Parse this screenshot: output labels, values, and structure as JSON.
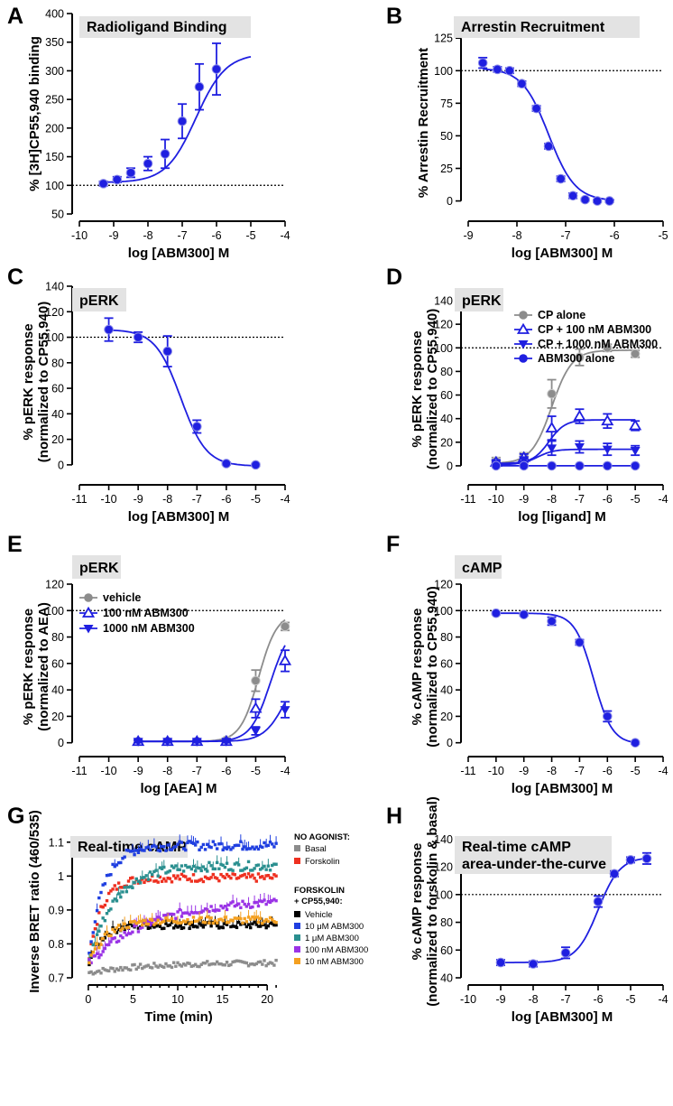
{
  "colors": {
    "blue": "#1f1fe0",
    "gray": "#8c8c8c",
    "title_bg": "#e3e3e3"
  },
  "chart_data": [
    {
      "panel": "A",
      "type": "scatter",
      "title": "Radioligand Binding",
      "xlabel": "log [ABM300] M",
      "ylabel": "% [3H]CP55,940 binding",
      "xlim": [
        -10,
        -4
      ],
      "ylim": [
        50,
        400
      ],
      "xticks": [
        -10,
        -9,
        -8,
        -7,
        -6,
        -5,
        -4
      ],
      "yticks": [
        50,
        100,
        150,
        200,
        250,
        300,
        350,
        400
      ],
      "ref_line": 100,
      "series": [
        {
          "name": "ABM300",
          "color": "blue",
          "marker": "circle",
          "x": [
            -9.3,
            -8.9,
            -8.5,
            -8.0,
            -7.5,
            -7.0,
            -6.5,
            -6.0
          ],
          "y": [
            103,
            110,
            122,
            138,
            155,
            212,
            272,
            303
          ],
          "err": [
            4,
            5,
            8,
            12,
            25,
            30,
            40,
            45
          ],
          "fit": {
            "bottom": 105,
            "top": 330,
            "logec50": -6.6,
            "hill": 1,
            "xrange": [
              -9.3,
              -5.0
            ]
          }
        }
      ]
    },
    {
      "panel": "B",
      "type": "scatter",
      "title": "Arrestin Recruitment",
      "xlabel": "log [ABM300] M",
      "ylabel": "% Arrestin Recruitment",
      "xlim": [
        -9,
        -5
      ],
      "ylim": [
        -10,
        130
      ],
      "xticks": [
        -9,
        -8,
        -7,
        -6,
        -5
      ],
      "yticks": [
        0,
        25,
        50,
        75,
        100,
        125
      ],
      "ref_line": 100,
      "series": [
        {
          "name": "ABM300",
          "color": "blue",
          "marker": "circle",
          "x": [
            -8.7,
            -8.4,
            -8.15,
            -7.9,
            -7.6,
            -7.35,
            -7.1,
            -6.85,
            -6.6,
            -6.35,
            -6.1
          ],
          "y": [
            106,
            101,
            100,
            90,
            71,
            42,
            17,
            4,
            1,
            0,
            0
          ],
          "err": [
            4,
            2,
            2,
            2,
            2,
            2,
            2,
            2,
            1,
            1,
            1
          ],
          "fit": {
            "bottom": 0,
            "top": 102,
            "logec50": -7.35,
            "hill": -1.6,
            "xrange": [
              -8.7,
              -6.0
            ]
          }
        }
      ]
    },
    {
      "panel": "C",
      "type": "scatter",
      "title": "pERK",
      "xlabel": "log [ABM300] M",
      "ylabel": "% pERK response",
      "ylabel2": "(normalized to CP55,940)",
      "xlim": [
        -11,
        -4
      ],
      "ylim": [
        -10,
        140
      ],
      "xticks": [
        -11,
        -10,
        -9,
        -8,
        -7,
        -6,
        -5,
        -4
      ],
      "yticks": [
        0,
        20,
        40,
        60,
        80,
        100,
        120,
        140
      ],
      "ref_line": 100,
      "series": [
        {
          "name": "ABM300",
          "color": "blue",
          "marker": "circle",
          "x": [
            -10,
            -9,
            -8,
            -7,
            -6,
            -5
          ],
          "y": [
            106,
            100,
            89,
            30,
            1,
            0
          ],
          "err": [
            9,
            4,
            12,
            5,
            1,
            1
          ],
          "fit": {
            "bottom": -1,
            "top": 106,
            "logec50": -7.55,
            "hill": -1.0,
            "xrange": [
              -10,
              -5
            ]
          }
        }
      ]
    },
    {
      "panel": "D",
      "type": "scatter",
      "title": "pERK",
      "xlabel": "log [ligand] M",
      "ylabel": "% pERK response",
      "ylabel2": "(normalized to CP55,940)",
      "xlim": [
        -11,
        -4
      ],
      "ylim": [
        -10,
        140
      ],
      "xticks": [
        -11,
        -10,
        -9,
        -8,
        -7,
        -6,
        -5,
        -4
      ],
      "yticks": [
        0,
        20,
        40,
        60,
        80,
        100,
        120,
        140
      ],
      "ref_line": 100,
      "series": [
        {
          "name": "CP alone",
          "color": "gray",
          "marker": "circle",
          "x": [
            -10,
            -9,
            -8,
            -7,
            -6,
            -5
          ],
          "y": [
            4,
            8,
            61,
            92,
            100,
            95
          ],
          "err": [
            3,
            3,
            12,
            7,
            3,
            3
          ],
          "fit": {
            "bottom": 2,
            "top": 98,
            "logec50": -8.0,
            "hill": 1.2,
            "xrange": [
              -10,
              -5
            ]
          }
        },
        {
          "name": "CP + 100 nM ABM300",
          "color": "blue",
          "marker": "triangle-up-open",
          "x": [
            -10,
            -9,
            -8,
            -7,
            -6,
            -5
          ],
          "y": [
            3,
            7,
            32,
            42,
            38,
            34
          ],
          "err": [
            2,
            3,
            10,
            6,
            6,
            4
          ],
          "fit": {
            "bottom": 2,
            "top": 39,
            "logec50": -8.1,
            "hill": 1.5,
            "xrange": [
              -10,
              -5
            ]
          }
        },
        {
          "name": "CP + 1000 nM ABM300",
          "color": "blue",
          "marker": "triangle-down",
          "x": [
            -10,
            -9,
            -8,
            -7,
            -6,
            -5
          ],
          "y": [
            2,
            5,
            15,
            16,
            14,
            13
          ],
          "err": [
            1,
            2,
            6,
            5,
            5,
            4
          ],
          "fit": {
            "bottom": 1,
            "top": 14,
            "logec50": -8.5,
            "hill": 1.5,
            "xrange": [
              -10,
              -5
            ]
          }
        },
        {
          "name": "ABM300 alone",
          "color": "blue",
          "marker": "circle",
          "x": [
            -10,
            -9,
            -8,
            -7,
            -6,
            -5
          ],
          "y": [
            0,
            0,
            0,
            0,
            0,
            0
          ],
          "err": [
            0,
            0,
            0,
            0,
            0,
            0
          ],
          "fit": {
            "bottom": 0,
            "top": 0,
            "logec50": -8,
            "hill": 1,
            "xrange": [
              -10,
              -5
            ]
          }
        }
      ]
    },
    {
      "panel": "E",
      "type": "scatter",
      "title": "pERK",
      "xlabel": "log [AEA] M",
      "ylabel": "% pERK response",
      "ylabel2": "(normalized to AEA)",
      "xlim": [
        -11,
        -4
      ],
      "ylim": [
        -5,
        120
      ],
      "xticks": [
        -11,
        -10,
        -9,
        -8,
        -7,
        -6,
        -5,
        -4
      ],
      "yticks": [
        0,
        20,
        40,
        60,
        80,
        100,
        120
      ],
      "ref_line": 100,
      "series": [
        {
          "name": "vehicle",
          "color": "gray",
          "marker": "circle",
          "x": [
            -9,
            -8,
            -7,
            -6,
            -5,
            -4
          ],
          "y": [
            1,
            1,
            1,
            2,
            47,
            88
          ],
          "err": [
            1,
            1,
            1,
            1,
            8,
            3
          ],
          "fit": {
            "bottom": 1,
            "top": 98,
            "logec50": -4.9,
            "hill": 1.4,
            "xrange": [
              -9,
              -4
            ]
          }
        },
        {
          "name": "100 nM ABM300",
          "color": "blue",
          "marker": "triangle-up-open",
          "x": [
            -9,
            -8,
            -7,
            -6,
            -5,
            -4
          ],
          "y": [
            1,
            1,
            1,
            1,
            26,
            62
          ],
          "err": [
            1,
            1,
            1,
            1,
            7,
            8
          ],
          "fit": {
            "bottom": 1,
            "top": 90,
            "logec50": -4.5,
            "hill": 1.3,
            "xrange": [
              -9,
              -4
            ]
          }
        },
        {
          "name": "1000 nM ABM300",
          "color": "blue",
          "marker": "triangle-down",
          "x": [
            -9,
            -8,
            -7,
            -6,
            -5,
            -4
          ],
          "y": [
            1,
            1,
            1,
            1,
            9,
            25
          ],
          "err": [
            1,
            1,
            1,
            1,
            3,
            6
          ],
          "fit": {
            "bottom": 1,
            "top": 60,
            "logec50": -4.0,
            "hill": 1.2,
            "xrange": [
              -9,
              -4
            ]
          }
        }
      ]
    },
    {
      "panel": "F",
      "type": "scatter",
      "title": "cAMP",
      "xlabel": "log [ABM300] M",
      "ylabel": "% cAMP response",
      "ylabel2": "(normalized to CP55,940)",
      "xlim": [
        -11,
        -4
      ],
      "ylim": [
        -5,
        120
      ],
      "xticks": [
        -11,
        -10,
        -9,
        -8,
        -7,
        -6,
        -5,
        -4
      ],
      "yticks": [
        0,
        20,
        40,
        60,
        80,
        100,
        120
      ],
      "ref_line": 100,
      "series": [
        {
          "name": "ABM300",
          "color": "blue",
          "marker": "circle",
          "x": [
            -10,
            -9,
            -8,
            -7,
            -6,
            -5
          ],
          "y": [
            98,
            97,
            92,
            76,
            20,
            0
          ],
          "err": [
            1,
            1,
            3,
            2,
            4,
            1
          ],
          "fit": {
            "bottom": -1,
            "top": 98,
            "logec50": -6.5,
            "hill": -1.3,
            "xrange": [
              -10,
              -5
            ]
          }
        }
      ]
    },
    {
      "panel": "G",
      "type": "scatter",
      "title": "Real-time cAMP",
      "xlabel": "Time (min)",
      "ylabel": "Inverse BRET ratio (460/535)",
      "xlim": [
        -1,
        22
      ],
      "ylim": [
        0.7,
        1.15
      ],
      "xticks": [
        0,
        5,
        10,
        15,
        20
      ],
      "yticks": [
        0.7,
        0.8,
        0.9,
        1.0,
        1.1
      ],
      "legend": {
        "group1": "NO AGONIST:",
        "group2_line1": "FORSKOLIN",
        "group2_line2": "+ CP55,940:",
        "entries": [
          {
            "label": "Basal",
            "color": "#8c8c8c"
          },
          {
            "label": "Forskolin",
            "color": "#ee3020"
          },
          {
            "label": "Vehicle",
            "color": "#000000"
          },
          {
            "label": "10 μM ABM300",
            "color": "#1f3fe0"
          },
          {
            "label": "1 μM ABM300",
            "color": "#2a8f8f"
          },
          {
            "label": "100 nM ABM300",
            "color": "#9a33e6"
          },
          {
            "label": "10 nM ABM300",
            "color": "#f4a020"
          }
        ]
      },
      "series": [
        {
          "name": "Basal",
          "color": "#8c8c8c",
          "plateau": 0.745,
          "start": 0.715,
          "k": 0.15,
          "noise": 0.008
        },
        {
          "name": "Forskolin",
          "color": "#ee3020",
          "plateau": 0.995,
          "start": 0.74,
          "k": 0.7,
          "noise": 0.012
        },
        {
          "name": "Vehicle",
          "color": "#000000",
          "plateau": 0.855,
          "start": 0.74,
          "k": 0.7,
          "noise": 0.01
        },
        {
          "name": "10 μM ABM300",
          "color": "#1f3fe0",
          "plateau": 1.09,
          "start": 0.75,
          "k": 0.6,
          "noise": 0.013
        },
        {
          "name": "1 μM ABM300",
          "color": "#2a8f8f",
          "plateau": 1.03,
          "start": 0.74,
          "k": 0.35,
          "noise": 0.013
        },
        {
          "name": "100 nM ABM300",
          "color": "#9a33e6",
          "plateau": 0.93,
          "start": 0.74,
          "k": 0.15,
          "noise": 0.012
        },
        {
          "name": "10 nM ABM300",
          "color": "#f4a020",
          "plateau": 0.87,
          "start": 0.74,
          "k": 0.5,
          "noise": 0.01
        }
      ]
    },
    {
      "panel": "H",
      "type": "scatter",
      "title": "Real-time cAMP",
      "title2": "area-under-the-curve",
      "xlabel": "log [ABM300] M",
      "ylabel": "% cAMP response",
      "ylabel2": "(normalized to forskolin & basal)",
      "xlim": [
        -10,
        -4
      ],
      "ylim": [
        40,
        150
      ],
      "xticks": [
        -10,
        -9,
        -8,
        -7,
        -6,
        -5,
        -4
      ],
      "yticks": [
        40,
        60,
        80,
        100,
        120,
        140
      ],
      "ref_line": 100,
      "series": [
        {
          "name": "ABM300",
          "color": "blue",
          "marker": "circle",
          "x": [
            -9,
            -8,
            -7,
            -6,
            -5.5,
            -5,
            -4.5
          ],
          "y": [
            51,
            50,
            58,
            95,
            115,
            125,
            126
          ],
          "err": [
            2,
            2,
            4,
            4,
            2,
            2,
            4
          ],
          "fit": {
            "bottom": 51,
            "top": 127,
            "logec50": -6.0,
            "hill": 1.3,
            "xrange": [
              -9,
              -4.5
            ]
          }
        }
      ]
    }
  ],
  "panel_letters": [
    "A",
    "B",
    "C",
    "D",
    "E",
    "F",
    "G",
    "H"
  ]
}
